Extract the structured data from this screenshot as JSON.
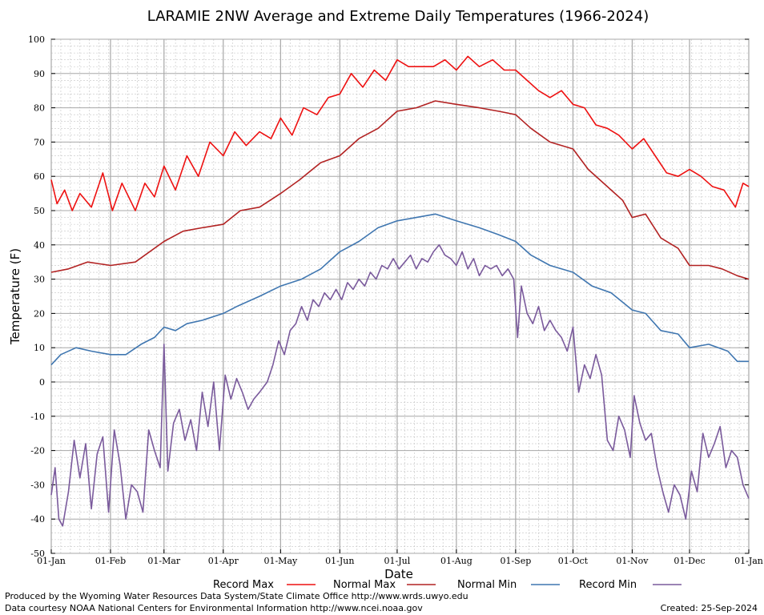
{
  "chart_data": {
    "type": "line",
    "title": "LARAMIE 2NW Average and Extreme Daily Temperatures (1966-2024)",
    "xlabel": "Date",
    "ylabel": "Temperature (F)",
    "ylim": [
      -50,
      100
    ],
    "yticks": [
      -50,
      -40,
      -30,
      -20,
      -10,
      0,
      10,
      20,
      30,
      40,
      50,
      60,
      70,
      80,
      90,
      100
    ],
    "x_ticks": [
      {
        "label": "01-Jan",
        "day": 1
      },
      {
        "label": "01-Feb",
        "day": 32
      },
      {
        "label": "01-Mar",
        "day": 60
      },
      {
        "label": "01-Apr",
        "day": 91
      },
      {
        "label": "01-May",
        "day": 121
      },
      {
        "label": "01-Jun",
        "day": 152
      },
      {
        "label": "01-Jul",
        "day": 182
      },
      {
        "label": "01-Aug",
        "day": 213
      },
      {
        "label": "01-Sep",
        "day": 244
      },
      {
        "label": "01-Oct",
        "day": 274
      },
      {
        "label": "01-Nov",
        "day": 305
      },
      {
        "label": "01-Dec",
        "day": 335
      },
      {
        "label": "01-Jan",
        "day": 366
      }
    ],
    "grid": true,
    "legend_position": "bottom",
    "series": [
      {
        "name": "Record Max",
        "color": "#ee1111",
        "points": [
          [
            1,
            59
          ],
          [
            4,
            52
          ],
          [
            8,
            56
          ],
          [
            12,
            50
          ],
          [
            16,
            55
          ],
          [
            22,
            51
          ],
          [
            28,
            61
          ],
          [
            33,
            50
          ],
          [
            38,
            58
          ],
          [
            45,
            50
          ],
          [
            50,
            58
          ],
          [
            55,
            54
          ],
          [
            60,
            63
          ],
          [
            66,
            56
          ],
          [
            72,
            66
          ],
          [
            78,
            60
          ],
          [
            84,
            70
          ],
          [
            91,
            66
          ],
          [
            97,
            73
          ],
          [
            103,
            69
          ],
          [
            110,
            73
          ],
          [
            116,
            71
          ],
          [
            121,
            77
          ],
          [
            127,
            72
          ],
          [
            133,
            80
          ],
          [
            140,
            78
          ],
          [
            146,
            83
          ],
          [
            152,
            84
          ],
          [
            158,
            90
          ],
          [
            164,
            86
          ],
          [
            170,
            91
          ],
          [
            176,
            88
          ],
          [
            182,
            94
          ],
          [
            188,
            92
          ],
          [
            195,
            92
          ],
          [
            201,
            92
          ],
          [
            207,
            94
          ],
          [
            213,
            91
          ],
          [
            219,
            95
          ],
          [
            225,
            92
          ],
          [
            232,
            94
          ],
          [
            238,
            91
          ],
          [
            244,
            91
          ],
          [
            250,
            88
          ],
          [
            256,
            85
          ],
          [
            262,
            83
          ],
          [
            268,
            85
          ],
          [
            274,
            81
          ],
          [
            280,
            80
          ],
          [
            286,
            75
          ],
          [
            292,
            74
          ],
          [
            298,
            72
          ],
          [
            305,
            68
          ],
          [
            311,
            71
          ],
          [
            317,
            66
          ],
          [
            323,
            61
          ],
          [
            329,
            60
          ],
          [
            335,
            62
          ],
          [
            341,
            60
          ],
          [
            347,
            57
          ],
          [
            353,
            56
          ],
          [
            359,
            51
          ],
          [
            363,
            58
          ],
          [
            366,
            57
          ]
        ]
      },
      {
        "name": "Normal Max",
        "color": "#b22222",
        "points": [
          [
            1,
            32
          ],
          [
            10,
            33
          ],
          [
            20,
            35
          ],
          [
            32,
            34
          ],
          [
            45,
            35
          ],
          [
            60,
            41
          ],
          [
            70,
            44
          ],
          [
            80,
            45
          ],
          [
            91,
            46
          ],
          [
            100,
            50
          ],
          [
            110,
            51
          ],
          [
            121,
            55
          ],
          [
            131,
            59
          ],
          [
            142,
            64
          ],
          [
            152,
            66
          ],
          [
            162,
            71
          ],
          [
            172,
            74
          ],
          [
            182,
            79
          ],
          [
            192,
            80
          ],
          [
            202,
            82
          ],
          [
            213,
            81
          ],
          [
            225,
            80
          ],
          [
            235,
            79
          ],
          [
            244,
            78
          ],
          [
            252,
            74
          ],
          [
            262,
            70
          ],
          [
            274,
            68
          ],
          [
            282,
            62
          ],
          [
            292,
            57
          ],
          [
            300,
            53
          ],
          [
            305,
            48
          ],
          [
            312,
            49
          ],
          [
            320,
            42
          ],
          [
            329,
            39
          ],
          [
            335,
            34
          ],
          [
            345,
            34
          ],
          [
            352,
            33
          ],
          [
            360,
            31
          ],
          [
            366,
            30
          ]
        ]
      },
      {
        "name": "Normal Min",
        "color": "#3f76b0",
        "points": [
          [
            1,
            5
          ],
          [
            6,
            8
          ],
          [
            14,
            10
          ],
          [
            22,
            9
          ],
          [
            32,
            8
          ],
          [
            40,
            8
          ],
          [
            48,
            11
          ],
          [
            55,
            13
          ],
          [
            60,
            16
          ],
          [
            66,
            15
          ],
          [
            72,
            17
          ],
          [
            80,
            18
          ],
          [
            91,
            20
          ],
          [
            98,
            22
          ],
          [
            110,
            25
          ],
          [
            121,
            28
          ],
          [
            132,
            30
          ],
          [
            142,
            33
          ],
          [
            152,
            38
          ],
          [
            162,
            41
          ],
          [
            172,
            45
          ],
          [
            182,
            47
          ],
          [
            192,
            48
          ],
          [
            202,
            49
          ],
          [
            213,
            47
          ],
          [
            225,
            45
          ],
          [
            235,
            43
          ],
          [
            244,
            41
          ],
          [
            252,
            37
          ],
          [
            262,
            34
          ],
          [
            274,
            32
          ],
          [
            284,
            28
          ],
          [
            294,
            26
          ],
          [
            305,
            21
          ],
          [
            312,
            20
          ],
          [
            320,
            15
          ],
          [
            329,
            14
          ],
          [
            335,
            10
          ],
          [
            345,
            11
          ],
          [
            355,
            9
          ],
          [
            360,
            6
          ],
          [
            366,
            6
          ]
        ]
      },
      {
        "name": "Record Min",
        "color": "#7a5a9c",
        "points": [
          [
            1,
            -33
          ],
          [
            3,
            -25
          ],
          [
            5,
            -40
          ],
          [
            7,
            -42
          ],
          [
            10,
            -32
          ],
          [
            13,
            -17
          ],
          [
            16,
            -28
          ],
          [
            19,
            -18
          ],
          [
            22,
            -37
          ],
          [
            25,
            -21
          ],
          [
            28,
            -16
          ],
          [
            31,
            -38
          ],
          [
            34,
            -14
          ],
          [
            37,
            -24
          ],
          [
            40,
            -40
          ],
          [
            43,
            -30
          ],
          [
            46,
            -32
          ],
          [
            49,
            -38
          ],
          [
            52,
            -14
          ],
          [
            55,
            -20
          ],
          [
            58,
            -25
          ],
          [
            60,
            11
          ],
          [
            62,
            -26
          ],
          [
            65,
            -12
          ],
          [
            68,
            -8
          ],
          [
            71,
            -17
          ],
          [
            74,
            -11
          ],
          [
            77,
            -20
          ],
          [
            80,
            -3
          ],
          [
            83,
            -13
          ],
          [
            86,
            0
          ],
          [
            89,
            -20
          ],
          [
            92,
            2
          ],
          [
            95,
            -5
          ],
          [
            98,
            1
          ],
          [
            101,
            -3
          ],
          [
            104,
            -8
          ],
          [
            107,
            -5
          ],
          [
            110,
            -3
          ],
          [
            114,
            0
          ],
          [
            117,
            5
          ],
          [
            120,
            12
          ],
          [
            123,
            8
          ],
          [
            126,
            15
          ],
          [
            129,
            17
          ],
          [
            132,
            22
          ],
          [
            135,
            18
          ],
          [
            138,
            24
          ],
          [
            141,
            22
          ],
          [
            144,
            26
          ],
          [
            147,
            24
          ],
          [
            150,
            27
          ],
          [
            153,
            24
          ],
          [
            156,
            29
          ],
          [
            159,
            27
          ],
          [
            162,
            30
          ],
          [
            165,
            28
          ],
          [
            168,
            32
          ],
          [
            171,
            30
          ],
          [
            174,
            34
          ],
          [
            177,
            33
          ],
          [
            180,
            36
          ],
          [
            183,
            33
          ],
          [
            186,
            35
          ],
          [
            189,
            37
          ],
          [
            192,
            33
          ],
          [
            195,
            36
          ],
          [
            198,
            35
          ],
          [
            201,
            38
          ],
          [
            204,
            40
          ],
          [
            207,
            37
          ],
          [
            210,
            36
          ],
          [
            213,
            34
          ],
          [
            216,
            38
          ],
          [
            219,
            33
          ],
          [
            222,
            36
          ],
          [
            225,
            31
          ],
          [
            228,
            34
          ],
          [
            231,
            33
          ],
          [
            234,
            34
          ],
          [
            237,
            31
          ],
          [
            240,
            33
          ],
          [
            243,
            30
          ],
          [
            245,
            13
          ],
          [
            247,
            28
          ],
          [
            250,
            20
          ],
          [
            253,
            17
          ],
          [
            256,
            22
          ],
          [
            259,
            15
          ],
          [
            262,
            18
          ],
          [
            265,
            15
          ],
          [
            268,
            13
          ],
          [
            271,
            9
          ],
          [
            274,
            16
          ],
          [
            277,
            -3
          ],
          [
            280,
            5
          ],
          [
            283,
            1
          ],
          [
            286,
            8
          ],
          [
            289,
            2
          ],
          [
            292,
            -17
          ],
          [
            295,
            -20
          ],
          [
            298,
            -10
          ],
          [
            301,
            -14
          ],
          [
            304,
            -22
          ],
          [
            306,
            -4
          ],
          [
            309,
            -12
          ],
          [
            312,
            -17
          ],
          [
            315,
            -15
          ],
          [
            318,
            -25
          ],
          [
            321,
            -32
          ],
          [
            324,
            -38
          ],
          [
            327,
            -30
          ],
          [
            330,
            -33
          ],
          [
            333,
            -40
          ],
          [
            336,
            -26
          ],
          [
            339,
            -32
          ],
          [
            342,
            -15
          ],
          [
            345,
            -22
          ],
          [
            348,
            -18
          ],
          [
            351,
            -13
          ],
          [
            354,
            -25
          ],
          [
            357,
            -20
          ],
          [
            360,
            -22
          ],
          [
            363,
            -30
          ],
          [
            366,
            -34
          ]
        ]
      }
    ],
    "footer": {
      "produced_by": "Produced by the Wyoming Water Resources Data System/State Climate Office http://www.wrds.uwyo.edu",
      "data_courtesy": "Data courtesy NOAA National Centers for Environmental Information http://www.ncei.noaa.gov",
      "created": "Created:  25-Sep-2024"
    }
  }
}
